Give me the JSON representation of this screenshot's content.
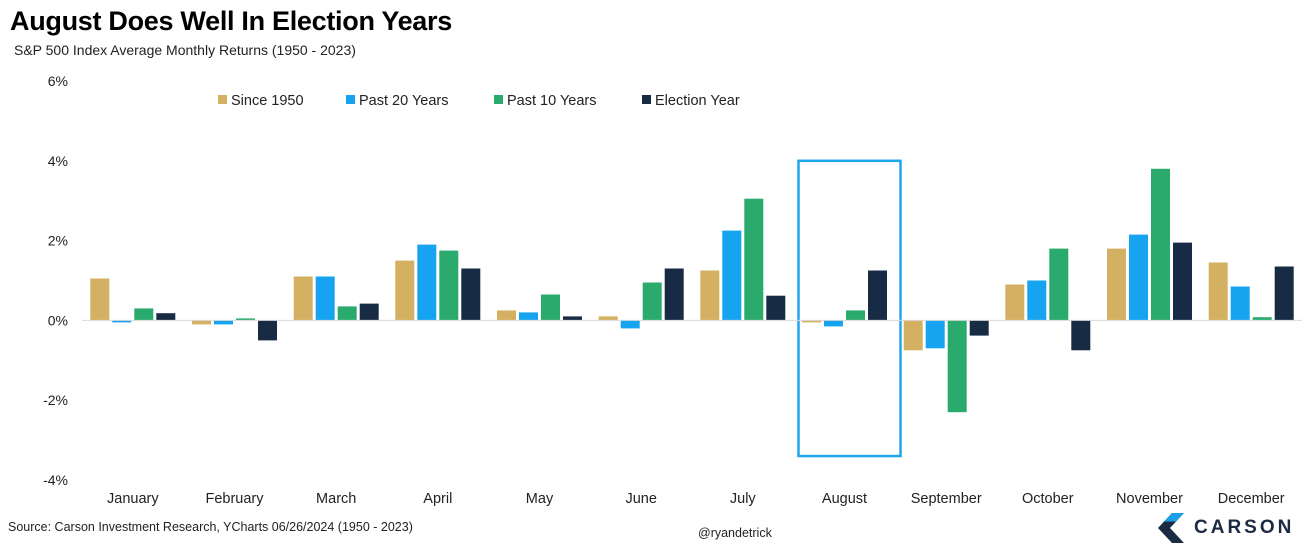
{
  "title": "August Does Well In Election Years",
  "subtitle": "S&P 500 Index Average Monthly Returns (1950 - 2023)",
  "source": "Source: Carson Investment Research, YCharts 06/26/2024 (1950 - 2023)",
  "handle": "@ryandetrick",
  "logo_text": "CARSON",
  "logo_icon": "carson-chevron-logo",
  "chart_data": {
    "type": "bar",
    "title": "August Does Well In Election Years",
    "subtitle": "S&P 500 Index Average Monthly Returns (1950 - 2023)",
    "categories": [
      "January",
      "February",
      "March",
      "April",
      "May",
      "June",
      "July",
      "August",
      "September",
      "October",
      "November",
      "December"
    ],
    "series": [
      {
        "name": "Since 1950",
        "color": "#D4B062",
        "values": [
          1.05,
          -0.1,
          1.1,
          1.5,
          0.25,
          0.1,
          1.25,
          -0.05,
          -0.75,
          0.9,
          1.8,
          1.45
        ]
      },
      {
        "name": "Past 20 Years",
        "color": "#16A3F0",
        "values": [
          -0.05,
          -0.1,
          1.1,
          1.9,
          0.2,
          -0.2,
          2.25,
          -0.15,
          -0.7,
          1.0,
          2.15,
          0.85
        ]
      },
      {
        "name": "Past 10 Years",
        "color": "#2BAA6D",
        "values": [
          0.3,
          0.05,
          0.35,
          1.75,
          0.65,
          0.95,
          3.05,
          0.25,
          -2.3,
          1.8,
          3.8,
          0.08
        ]
      },
      {
        "name": "Election Year",
        "color": "#172B45",
        "values": [
          0.18,
          -0.5,
          0.42,
          1.3,
          0.1,
          1.3,
          0.62,
          1.25,
          -0.38,
          -0.75,
          1.95,
          1.35
        ]
      }
    ],
    "y_ticks": [
      "6%",
      "4%",
      "2%",
      "0%",
      "-2%",
      "-4%"
    ],
    "ylim": [
      -4,
      6
    ],
    "y_unit": "%",
    "legend_position": "top-center",
    "highlight": {
      "category": "August",
      "color": "#1FA6EE"
    },
    "grid": false,
    "zero_line": true
  }
}
